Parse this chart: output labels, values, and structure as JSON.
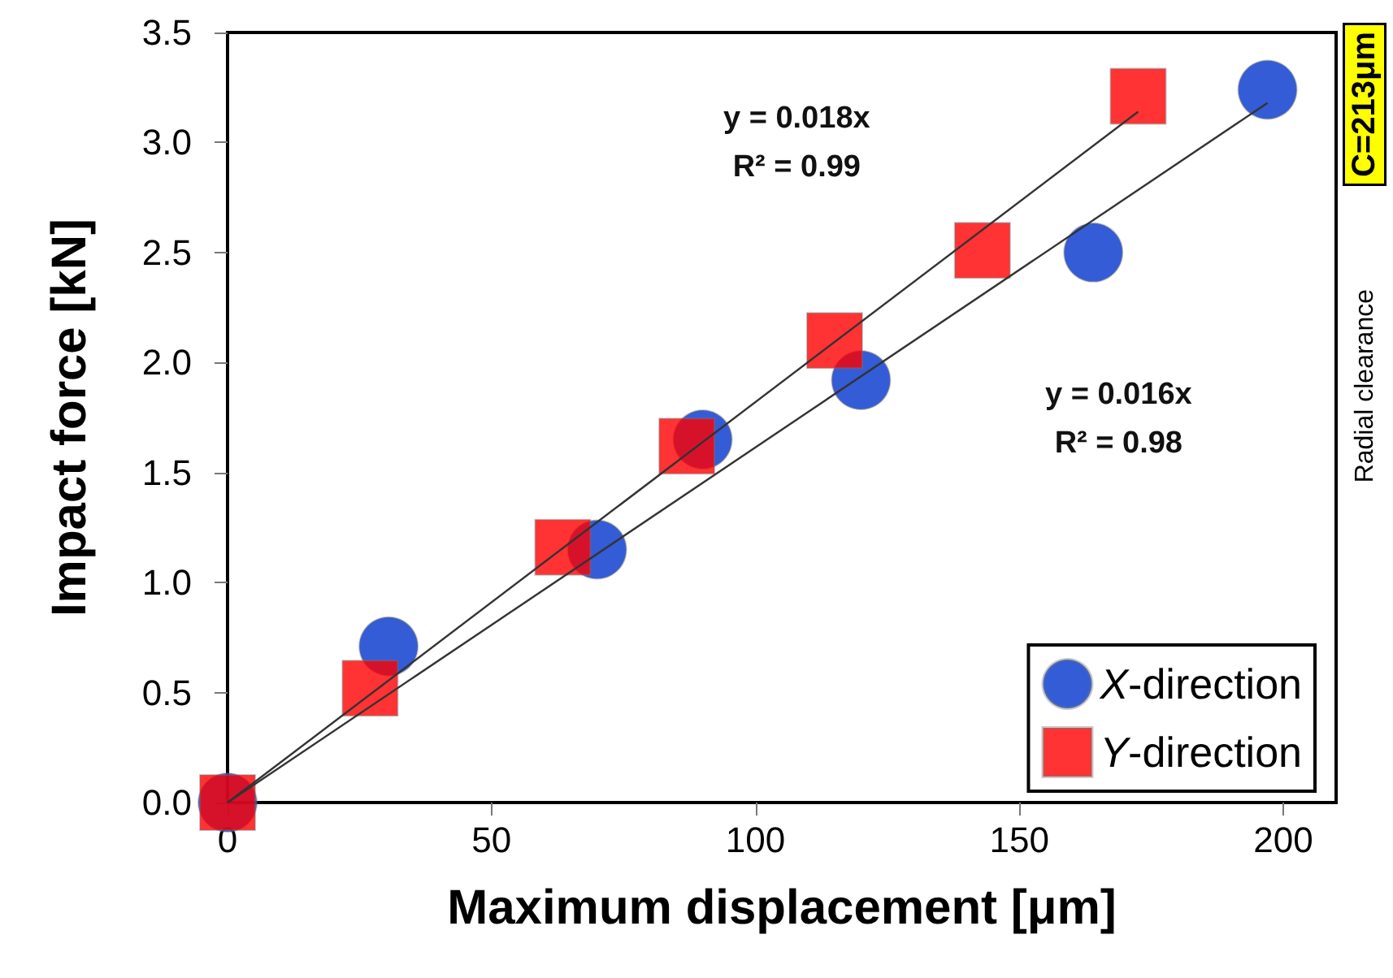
{
  "chart_data": {
    "type": "scatter",
    "xlabel": "Maximum displacement [μm]",
    "ylabel": "Impact force [kN]",
    "xlim": [
      0,
      210
    ],
    "xticks": [
      0,
      50,
      100,
      150,
      200
    ],
    "ylim": [
      0,
      3.5
    ],
    "yticks": [
      {
        "value": 0,
        "label": "0.0"
      },
      {
        "value": 0.5,
        "label": "0.5"
      },
      {
        "value": 1,
        "label": "1.0"
      },
      {
        "value": 1.5,
        "label": "1.5"
      },
      {
        "value": 2,
        "label": "2.0"
      },
      {
        "value": 2.5,
        "label": "2.5"
      },
      {
        "value": 3,
        "label": "3.0"
      },
      {
        "value": 3.5,
        "label": "3.5"
      }
    ],
    "grid": false,
    "legend": "bottom right",
    "series": [
      {
        "name": "X-direction",
        "marker": "circle",
        "color": "#0033cc",
        "x": [
          0,
          30.5,
          70,
          90,
          120,
          164,
          197
        ],
        "values": [
          0,
          0.71,
          1.15,
          1.65,
          1.92,
          2.5,
          3.24
        ]
      },
      {
        "name": "Y-direction",
        "marker": "square",
        "color": "#ff0000",
        "x": [
          0,
          27,
          63.5,
          87,
          115,
          143,
          172.5
        ],
        "values": [
          0,
          0.52,
          1.16,
          1.62,
          2.1,
          2.51,
          3.21
        ]
      },
      {
        "type": "line",
        "marker": "none",
        "color": "#333333",
        "x": [
          0,
          172.5
        ],
        "values": [
          0,
          3.14
        ]
      },
      {
        "type": "line",
        "marker": "none",
        "color": "#333333",
        "x": [
          0,
          197
        ],
        "values": [
          0,
          3.18
        ]
      }
    ],
    "annotations": [
      "y = 0.018x\nR² = 0.99",
      "y = 0.016x\nR² = 0.98",
      "C=213μm",
      "Radial clearance"
    ]
  }
}
